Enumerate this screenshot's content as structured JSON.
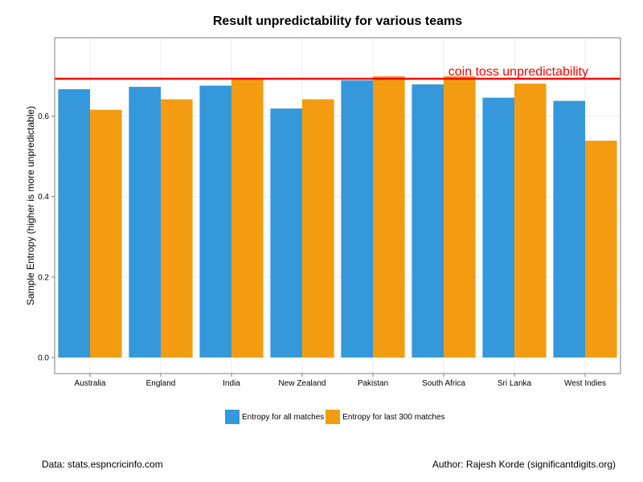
{
  "chart_data": {
    "type": "bar",
    "title": "Result unpredictability for various teams",
    "xlabel": "",
    "ylabel": "Sample Entropy (higher is more unpredictable)",
    "categories": [
      "Australia",
      "England",
      "India",
      "New Zealand",
      "Pakistan",
      "South Africa",
      "Sri Lanka",
      "West Indies"
    ],
    "series": [
      {
        "name": "Entropy for all matches",
        "color": "#3498DB",
        "values": [
          0.667,
          0.673,
          0.676,
          0.619,
          0.689,
          0.679,
          0.646,
          0.638
        ]
      },
      {
        "name": "Entropy for last 300 matches",
        "color": "#F39C12",
        "values": [
          0.616,
          0.642,
          0.691,
          0.642,
          0.699,
          0.699,
          0.681,
          0.539
        ]
      }
    ],
    "ylim": [
      -0.04,
      0.795
    ],
    "yticks": [
      0.0,
      0.2,
      0.4,
      0.6
    ],
    "ytick_labels": [
      "0.0",
      "0.2",
      "0.4",
      "0.6"
    ],
    "grid": true,
    "legend_position": "bottom",
    "reference_line": {
      "value": 0.693,
      "label": "coin toss unpredictability",
      "color": "#FF0000"
    }
  },
  "footer": {
    "source": "Data: stats.espncricinfo.com",
    "author": "Author: Rajesh Korde (significantdigits.org)"
  }
}
